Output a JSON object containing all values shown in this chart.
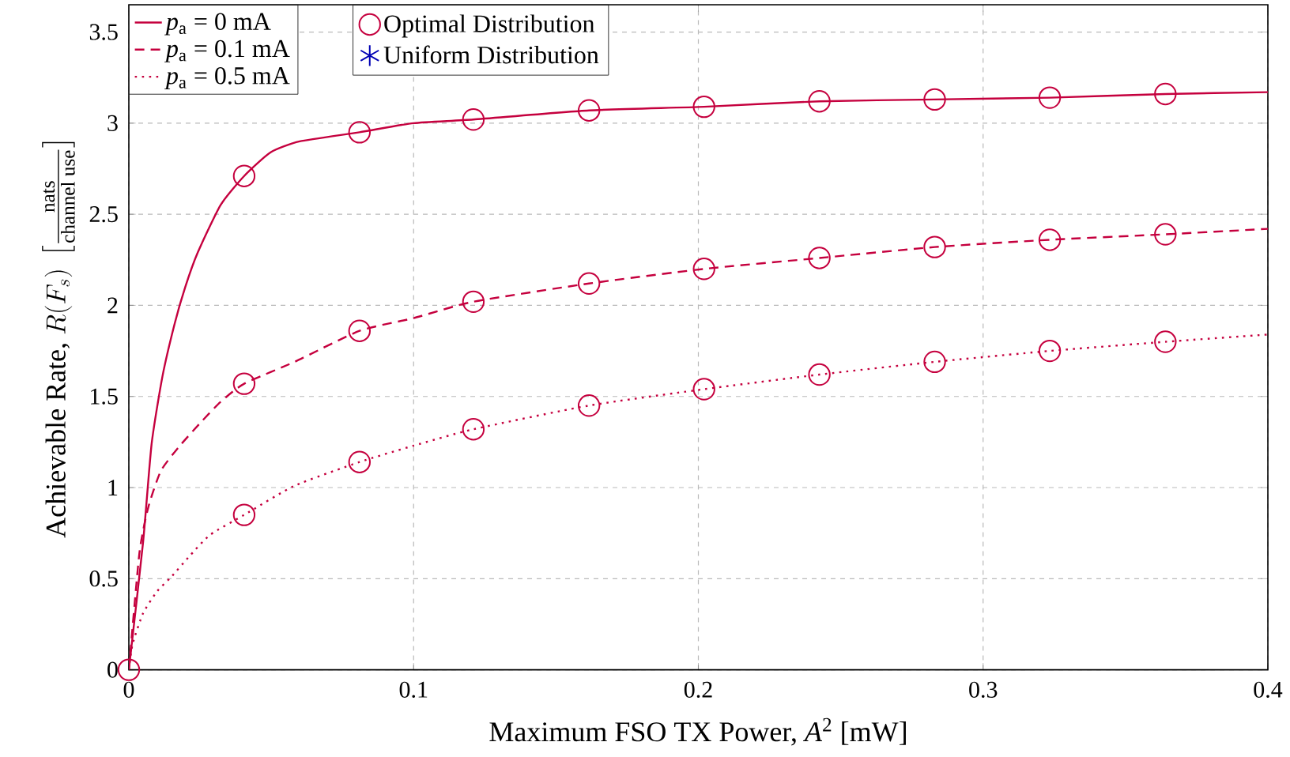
{
  "chart_data": {
    "type": "line",
    "xlabel": "Maximum FSO TX Power, *A*$^{2}$ [mW]",
    "ylabel": "\\text{Achievable Rate, } R(F_s)\\ \\left[\\frac{\\text{nats}}{\\text{channel use}}\\right]",
    "xlim": [
      0,
      0.4
    ],
    "ylim": [
      0,
      3.65
    ],
    "xticks": [
      0,
      0.1,
      0.2,
      0.3,
      0.4
    ],
    "yticks": [
      0,
      0.5,
      1,
      1.5,
      2,
      2.5,
      3,
      3.5
    ],
    "grid": true,
    "legend": "top left",
    "series": [
      {
        "name": "*p*$_{a}$ = 0 mA",
        "color": "#c5003e",
        "line_style": "solid",
        "marker": "none",
        "x": [
          0,
          0.005,
          0.008,
          0.0118,
          0.0161,
          0.0198,
          0.0242,
          0.0322,
          0.0405,
          0.0498,
          0.06,
          0.081,
          0.1,
          0.121,
          0.1616,
          0.202,
          0.2425,
          0.283,
          0.3234,
          0.364,
          0.4
        ],
        "values": [
          0,
          0.7,
          1.24,
          1.61,
          1.9,
          2.1,
          2.29,
          2.55,
          2.71,
          2.84,
          2.9,
          2.95,
          3.0,
          3.02,
          3.07,
          3.09,
          3.12,
          3.13,
          3.14,
          3.16,
          3.17
        ]
      },
      {
        "name": "*p*$_{a}$ = 0.1 mA",
        "color": "#c5003e",
        "line_style": "dashed",
        "marker": "none",
        "x": [
          0,
          0.0037,
          0.0068,
          0.0112,
          0.0174,
          0.0248,
          0.0322,
          0.0405,
          0.0582,
          0.081,
          0.1,
          0.121,
          0.1616,
          0.202,
          0.2425,
          0.283,
          0.3234,
          0.364,
          0.4
        ],
        "values": [
          0,
          0.64,
          0.89,
          1.09,
          1.22,
          1.35,
          1.47,
          1.57,
          1.69,
          1.86,
          1.93,
          2.02,
          2.12,
          2.2,
          2.26,
          2.32,
          2.36,
          2.39,
          2.42
        ]
      },
      {
        "name": "*p*$_{a}$ = 0.5 mA",
        "color": "#c5003e",
        "line_style": "dotted",
        "marker": "none",
        "x": [
          0,
          0.0013,
          0.005,
          0.0099,
          0.0149,
          0.0211,
          0.0285,
          0.0405,
          0.0582,
          0.081,
          0.1,
          0.121,
          0.1616,
          0.202,
          0.2425,
          0.283,
          0.3234,
          0.364,
          0.4
        ],
        "values": [
          0,
          0.14,
          0.31,
          0.43,
          0.51,
          0.62,
          0.74,
          0.85,
          1.01,
          1.14,
          1.23,
          1.32,
          1.45,
          1.54,
          1.62,
          1.69,
          1.75,
          1.8,
          1.84
        ]
      },
      {
        "name": "Optimal Distribution",
        "type": "scatter",
        "color": "#c5003e",
        "marker": "circle",
        "x": [
          0,
          0.0405,
          0.081,
          0.121,
          0.1616,
          0.202,
          0.2425,
          0.283,
          0.3234,
          0.364,
          0.0405,
          0.081,
          0.121,
          0.1616,
          0.202,
          0.2425,
          0.283,
          0.3234,
          0.364,
          0.0405,
          0.081,
          0.121,
          0.1616,
          0.202,
          0.2425,
          0.283,
          0.3234,
          0.364
        ],
        "values": [
          0,
          2.71,
          2.95,
          3.02,
          3.07,
          3.09,
          3.12,
          3.13,
          3.14,
          3.16,
          1.57,
          1.86,
          2.02,
          2.12,
          2.2,
          2.26,
          2.32,
          2.36,
          2.39,
          0.85,
          1.14,
          1.32,
          1.45,
          1.54,
          1.62,
          1.69,
          1.75,
          1.8
        ]
      },
      {
        "name": "Uniform Distribution",
        "type": "scatter",
        "color": "#0000b4",
        "marker": "star"
      }
    ]
  }
}
